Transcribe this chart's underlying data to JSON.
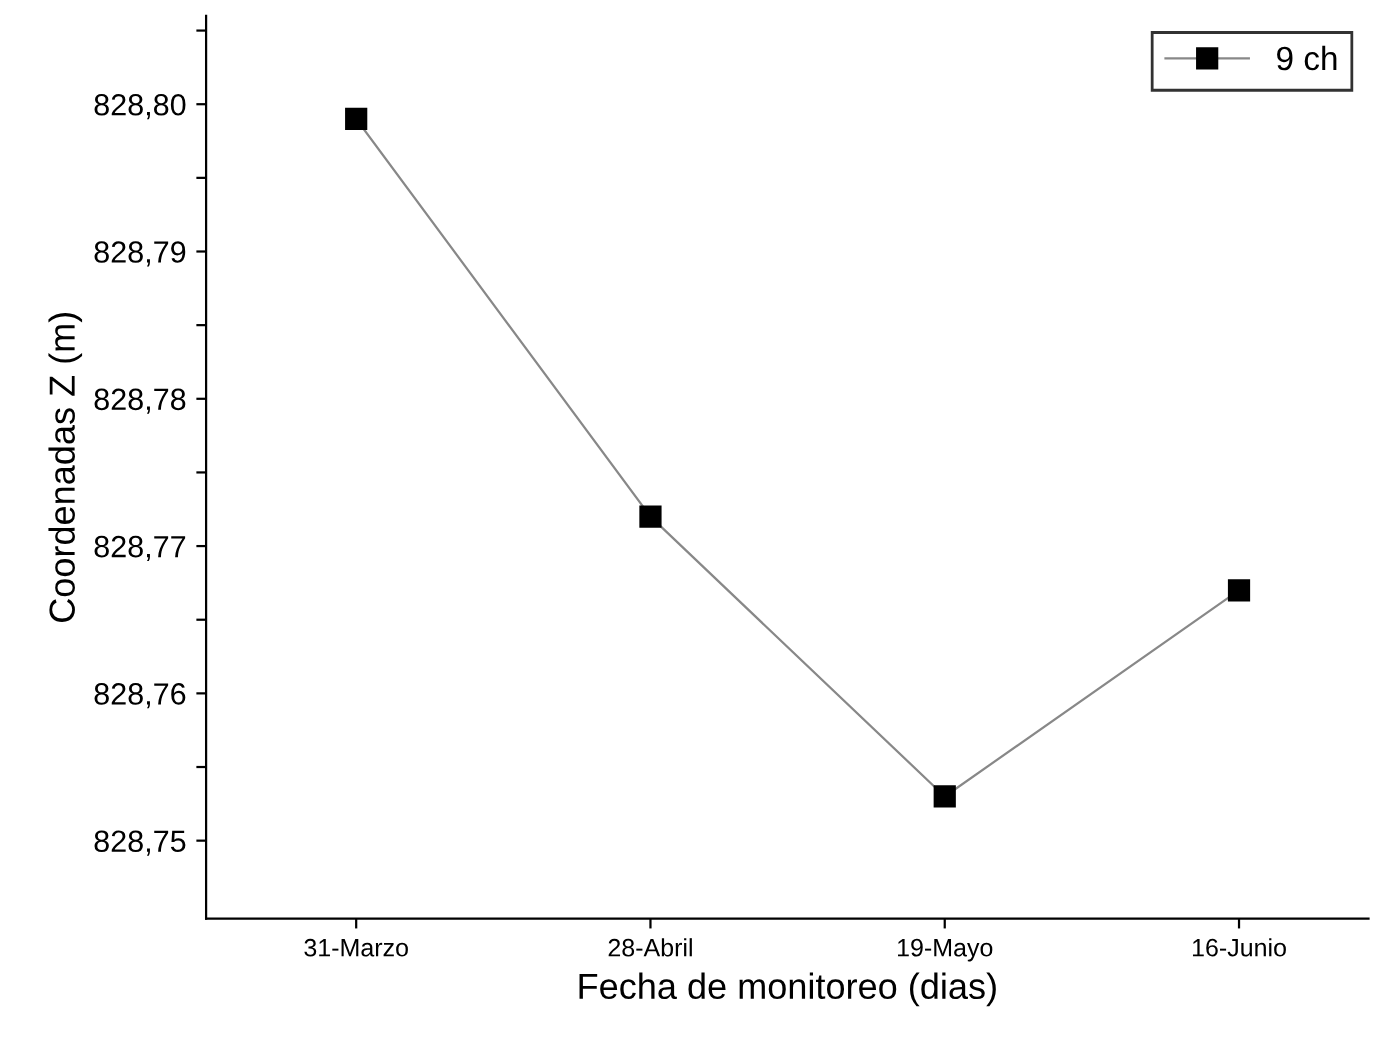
{
  "chart_data": {
    "type": "line",
    "xlabel": "Fecha de monitoreo (dias)",
    "ylabel": "Coordenadas Z (m)",
    "categories": [
      "31-Marzo",
      "28-Abril",
      "19-Mayo",
      "16-Junio"
    ],
    "series": [
      {
        "name": "9 ch",
        "color": "#000000",
        "values": [
          828.799,
          828.772,
          828.753,
          828.767
        ]
      }
    ],
    "ylim": [
      828.7447,
      828.806
    ],
    "yticks": [
      {
        "value": 828.75,
        "label": "828,75"
      },
      {
        "value": 828.755,
        "label": null
      },
      {
        "value": 828.76,
        "label": "828,76"
      },
      {
        "value": 828.765,
        "label": null
      },
      {
        "value": 828.77,
        "label": "828,77"
      },
      {
        "value": 828.775,
        "label": null
      },
      {
        "value": 828.78,
        "label": "828,78"
      },
      {
        "value": 828.785,
        "label": null
      },
      {
        "value": 828.79,
        "label": "828,79"
      },
      {
        "value": 828.795,
        "label": null
      },
      {
        "value": 828.8,
        "label": "828,80"
      },
      {
        "value": 828.805,
        "label": null
      }
    ],
    "marker": "square",
    "line_style": "solid",
    "legend": "top right",
    "grid": false
  }
}
